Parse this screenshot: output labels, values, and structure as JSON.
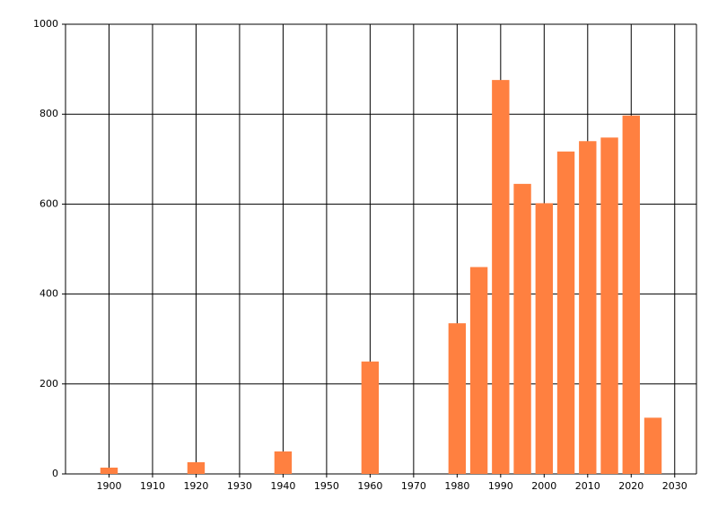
{
  "chart_data": {
    "type": "bar",
    "x": [
      1900,
      1920,
      1940,
      1960,
      1980,
      1985,
      1990,
      1995,
      2000,
      2005,
      2010,
      2015,
      2020,
      2025
    ],
    "values": [
      14,
      26,
      50,
      250,
      335,
      460,
      876,
      645,
      602,
      717,
      740,
      748,
      797,
      125
    ],
    "color": "#ff8040",
    "xlim": [
      1890,
      2035
    ],
    "xticks": [
      1900,
      1910,
      1920,
      1930,
      1940,
      1950,
      1960,
      1970,
      1980,
      1990,
      2000,
      2010,
      2020,
      2030
    ],
    "ylim": [
      0,
      1000
    ],
    "yticks": [
      0,
      200,
      400,
      600,
      800,
      1000
    ],
    "grid": true
  }
}
